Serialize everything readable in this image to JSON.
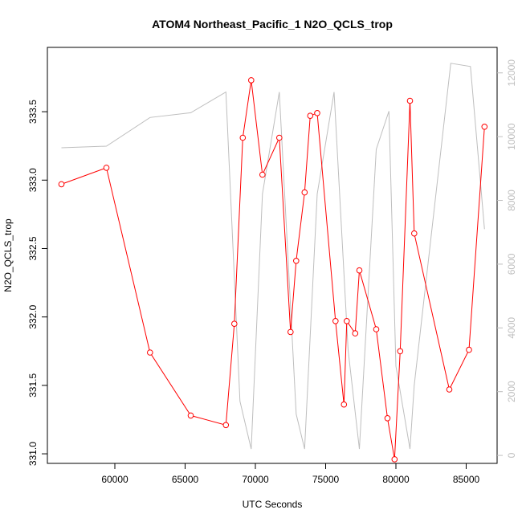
{
  "chart_data": {
    "type": "line",
    "title": "ATOM4 Northeast_Pacific_1 N2O_QCLS_trop",
    "xlabel": "UTC Seconds",
    "ylabel": "N2O_QCLS_trop",
    "xlim": [
      55200,
      87200
    ],
    "ylim": [
      330.93,
      333.97
    ],
    "y2lim": [
      -250,
      12800
    ],
    "x_ticks": [
      60000,
      65000,
      70000,
      75000,
      80000,
      85000
    ],
    "y_ticks": [
      331.0,
      331.5,
      332.0,
      332.5,
      333.0,
      333.5
    ],
    "y_tick_labels": [
      "331.0",
      "331.5",
      "332.0",
      "332.5",
      "333.0",
      "333.5"
    ],
    "y2_ticks": [
      0,
      2000,
      4000,
      6000,
      8000,
      10000,
      12000
    ],
    "grid": false,
    "legend": "none",
    "colors": {
      "primary": "#ff0000",
      "secondary": "#bebebe",
      "axis": "#000000"
    },
    "series": [
      {
        "axis": "left",
        "color": "#ff0000",
        "marker": "open-circle",
        "x": [
          56200,
          59400,
          62500,
          65400,
          67900,
          68500,
          69100,
          69700,
          70500,
          71700,
          72500,
          72900,
          73500,
          73900,
          74400,
          75700,
          76300,
          76500,
          77100,
          77400,
          78600,
          79400,
          79900,
          80300,
          81000,
          81300,
          83800,
          85200,
          86300
        ],
        "y": [
          332.97,
          333.09,
          331.74,
          331.28,
          331.21,
          331.95,
          333.31,
          333.73,
          333.04,
          333.31,
          331.89,
          332.41,
          332.91,
          333.47,
          333.49,
          331.97,
          331.36,
          331.97,
          331.88,
          332.34,
          331.91,
          331.26,
          330.96,
          331.75,
          333.58,
          332.61,
          331.47,
          331.76,
          333.39
        ]
      },
      {
        "axis": "right",
        "color": "#bebebe",
        "marker": "none",
        "x": [
          56200,
          59400,
          62500,
          65400,
          67900,
          68900,
          69700,
          70500,
          71700,
          72900,
          73500,
          74400,
          75600,
          76600,
          77400,
          78600,
          79500,
          80000,
          81000,
          81300,
          83900,
          85300,
          86300
        ],
        "y": [
          9650,
          9700,
          10600,
          10750,
          11400,
          1700,
          200,
          8200,
          11400,
          1300,
          200,
          8200,
          11400,
          3300,
          200,
          9600,
          10800,
          2800,
          200,
          2200,
          12300,
          12200,
          7100
        ]
      }
    ]
  }
}
